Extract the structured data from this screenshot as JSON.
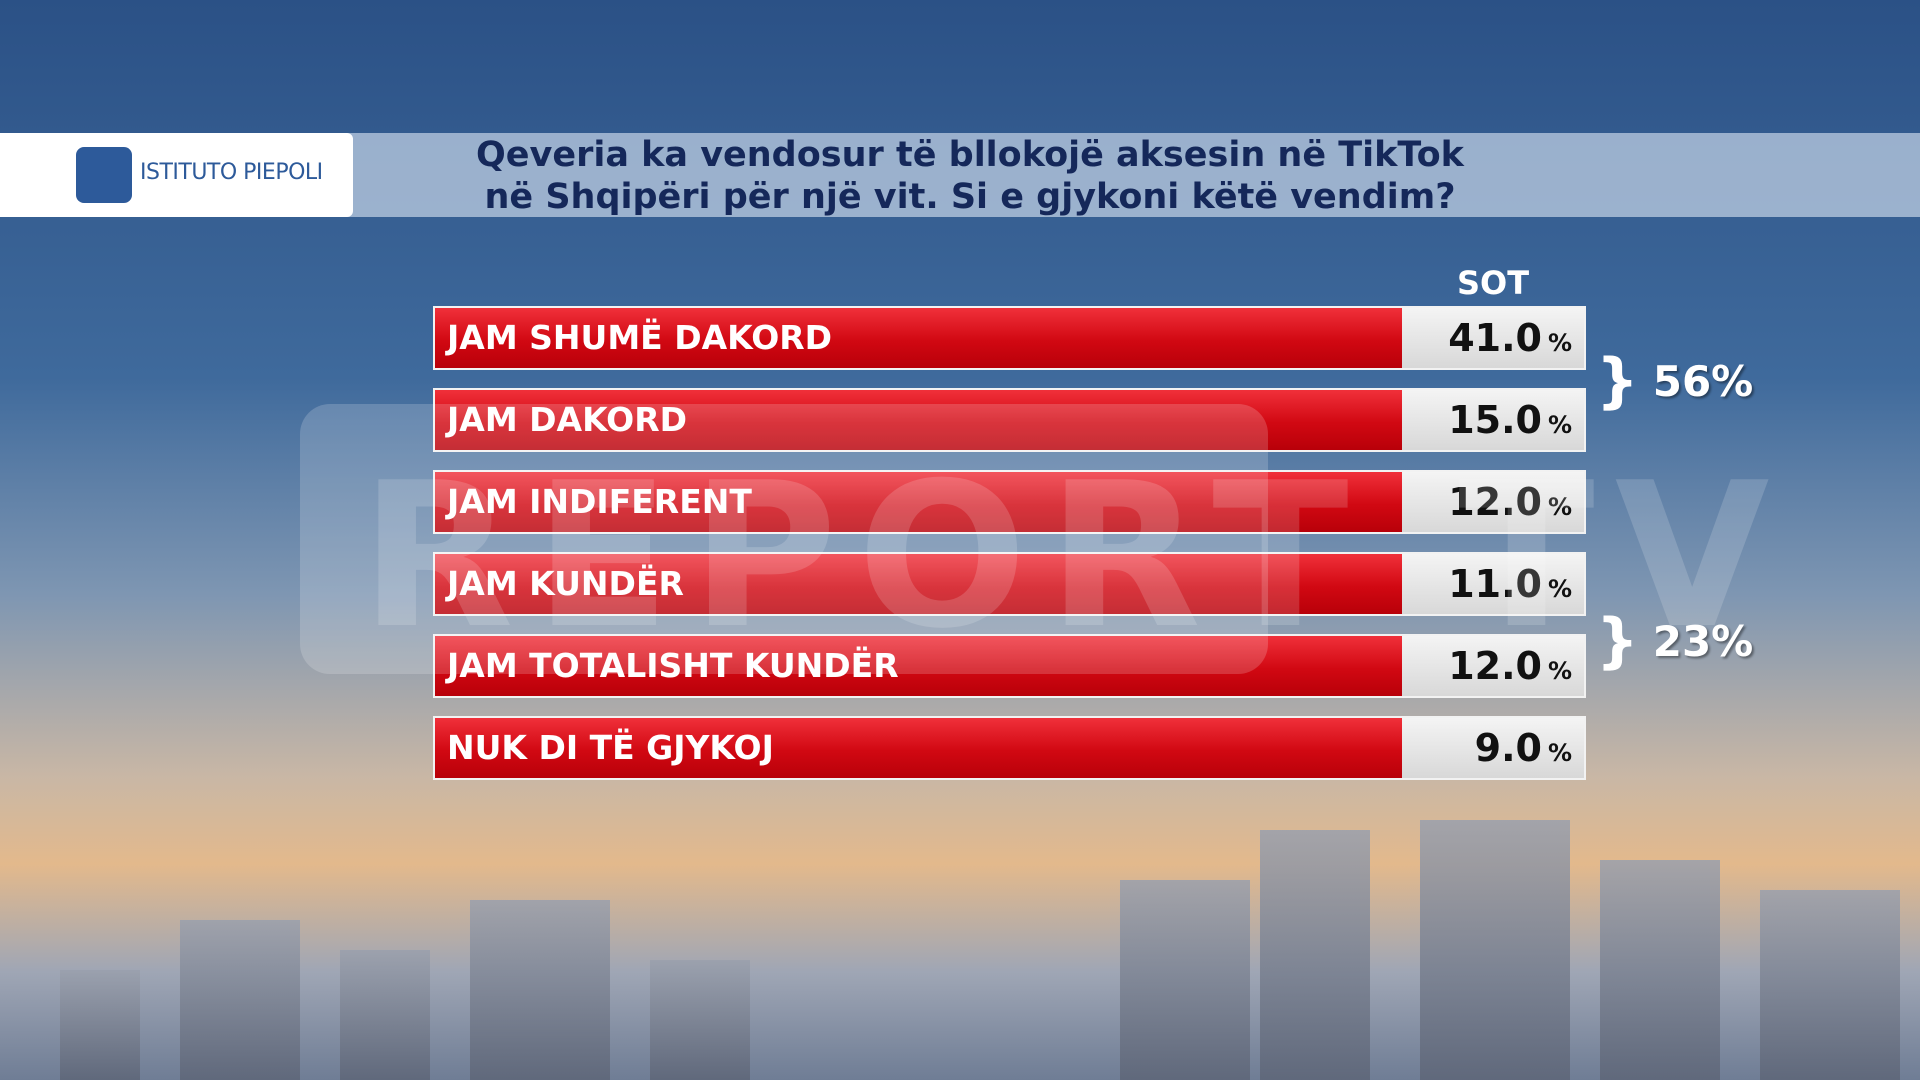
{
  "header": {
    "logo": "ISTITUTO PIEPOLI",
    "title": [
      "Qeveria ka vendosur të bllokojë aksesin në TikTok",
      "në Shqipëri për një vit. Si e gjykoni këtë vendim?"
    ]
  },
  "watermark": "REPORT TV",
  "table": {
    "column": "SOT",
    "rows": [
      {
        "label": "JAM SHUMË DAKORD",
        "value": "41.0",
        "unit": "%"
      },
      {
        "label": "JAM DAKORD",
        "value": "15.0",
        "unit": "%"
      },
      {
        "label": "JAM INDIFERENT",
        "value": "12.0",
        "unit": "%"
      },
      {
        "label": "JAM KUNDËR",
        "value": "11.0",
        "unit": "%"
      },
      {
        "label": "JAM TOTALISHT KUNDËR",
        "value": "12.0",
        "unit": "%"
      },
      {
        "label": "NUK DI TË GJYKOJ",
        "value": "9.0",
        "unit": "%"
      }
    ],
    "groups": [
      {
        "value": "56%"
      },
      {
        "value": "23%"
      }
    ]
  }
}
